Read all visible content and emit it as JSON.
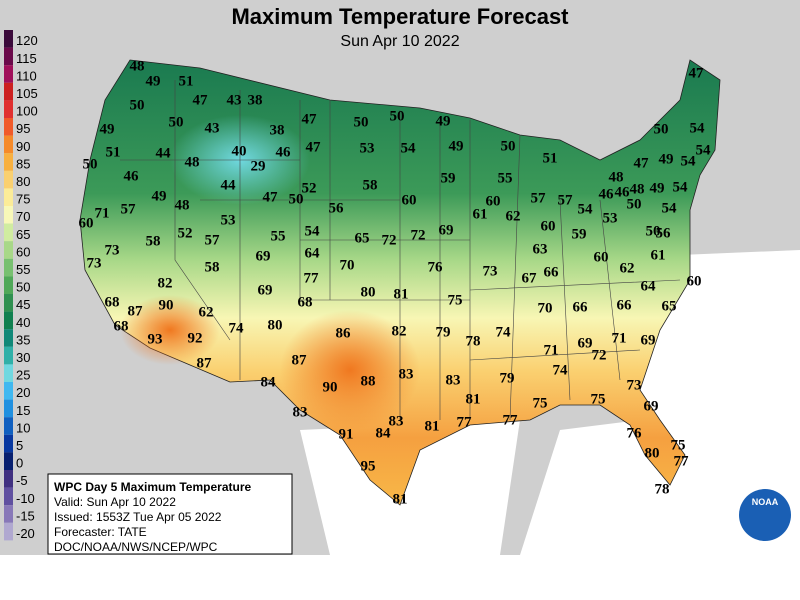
{
  "header": {
    "title": "Maximum Temperature Forecast",
    "subtitle": "Sun Apr 10 2022"
  },
  "legend": {
    "labels": [
      120,
      115,
      110,
      105,
      100,
      95,
      90,
      85,
      80,
      75,
      70,
      65,
      60,
      55,
      50,
      45,
      40,
      35,
      30,
      25,
      20,
      15,
      10,
      5,
      0,
      -5,
      -10,
      -15,
      -20
    ],
    "colors": [
      "#3a0a3a",
      "#6a0a4a",
      "#a0105a",
      "#cc2020",
      "#e03030",
      "#f05a2a",
      "#f58a2a",
      "#f8b040",
      "#fad070",
      "#fcec98",
      "#f8f8b8",
      "#d0eca0",
      "#a8d888",
      "#78c070",
      "#50a858",
      "#309050",
      "#108050",
      "#108878",
      "#30b0a8",
      "#70d8e0",
      "#40b8f0",
      "#2090e0",
      "#1060c0",
      "#0838a0",
      "#082070",
      "#403080",
      "#6050a0",
      "#8878b8",
      "#b0a8d0"
    ]
  },
  "temperatures": [
    48,
    49,
    51,
    47,
    43,
    38,
    50,
    50,
    43,
    38,
    47,
    50,
    50,
    49,
    49,
    51,
    44,
    40,
    46,
    47,
    53,
    54,
    49,
    50,
    48,
    29,
    50,
    46,
    59,
    55,
    51,
    44,
    52,
    58,
    47,
    50,
    49,
    48,
    57,
    56,
    60,
    60,
    61,
    62,
    57,
    57,
    71,
    60,
    53,
    52,
    57,
    55,
    54,
    65,
    72,
    72,
    69,
    60,
    59,
    54,
    53,
    48,
    46,
    46,
    48,
    47,
    49,
    54,
    50,
    54,
    47,
    54,
    49,
    54,
    50,
    54,
    50,
    56,
    61,
    73,
    58,
    73,
    69,
    64,
    63,
    60,
    62,
    58,
    70,
    76,
    73,
    67,
    66,
    77,
    82,
    69,
    80,
    81,
    75,
    64,
    60,
    65,
    66,
    66,
    70,
    68,
    87,
    90,
    62,
    68,
    68,
    86,
    82,
    79,
    78,
    74,
    93,
    92,
    74,
    80,
    71,
    69,
    69,
    72,
    71,
    87,
    87,
    74,
    84,
    90,
    88,
    83,
    83,
    79,
    73,
    81,
    75,
    75,
    69,
    83,
    91,
    84,
    83,
    81,
    77,
    77,
    76,
    75,
    80,
    77,
    95,
    81,
    78
  ],
  "info_box": {
    "title": "WPC Day 5 Maximum Temperature",
    "lines": [
      "Valid: Sun Apr 10 2022",
      "Issued: 1553Z Tue Apr 05 2022",
      "Forecaster: TATE",
      "DOC/NOAA/NWS/NCEP/WPC"
    ]
  },
  "logo": "NOAA"
}
